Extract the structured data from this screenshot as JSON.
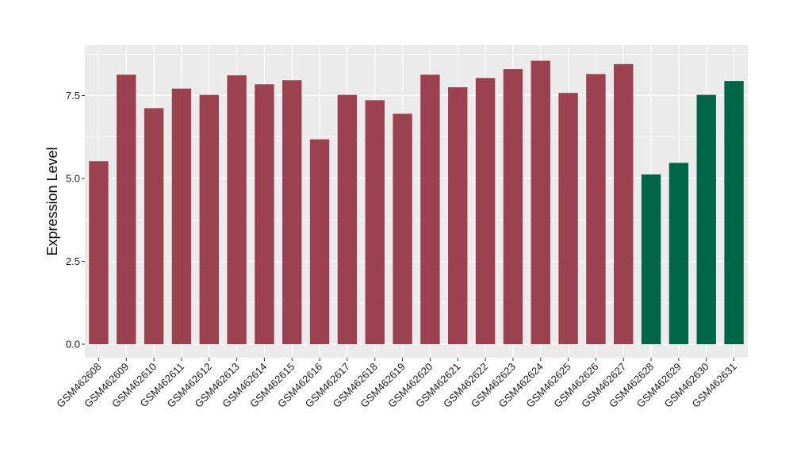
{
  "chart_data": {
    "type": "bar",
    "title": "",
    "xlabel": "",
    "ylabel": "Expression Level",
    "ylim": [
      0,
      8.95
    ],
    "yticks": [
      0.0,
      2.5,
      5.0,
      7.5
    ],
    "ytick_labels": [
      "0.0",
      "2.5",
      "5.0",
      "7.5"
    ],
    "grid": true,
    "legend": "none",
    "categories": [
      "GSM462608",
      "GSM462609",
      "GSM462610",
      "GSM462611",
      "GSM462612",
      "GSM462613",
      "GSM462614",
      "GSM462615",
      "GSM462616",
      "GSM462617",
      "GSM462618",
      "GSM462619",
      "GSM462620",
      "GSM462621",
      "GSM462622",
      "GSM462623",
      "GSM462624",
      "GSM462625",
      "GSM462626",
      "GSM462627",
      "GSM462628",
      "GSM462629",
      "GSM462630",
      "GSM462631"
    ],
    "values": [
      5.52,
      8.13,
      7.12,
      7.71,
      7.52,
      8.11,
      7.84,
      7.96,
      6.18,
      7.52,
      7.36,
      6.95,
      8.13,
      7.75,
      8.03,
      8.3,
      8.55,
      7.58,
      8.15,
      8.45,
      5.12,
      5.47,
      7.52,
      7.94
    ],
    "colors": [
      "#9b4150",
      "#9b4150",
      "#9b4150",
      "#9b4150",
      "#9b4150",
      "#9b4150",
      "#9b4150",
      "#9b4150",
      "#9b4150",
      "#9b4150",
      "#9b4150",
      "#9b4150",
      "#9b4150",
      "#9b4150",
      "#9b4150",
      "#9b4150",
      "#9b4150",
      "#9b4150",
      "#9b4150",
      "#9b4150",
      "#006646",
      "#006646",
      "#006646",
      "#006646"
    ],
    "panel_background": "#ebebeb",
    "grid_color": "#ffffff"
  }
}
